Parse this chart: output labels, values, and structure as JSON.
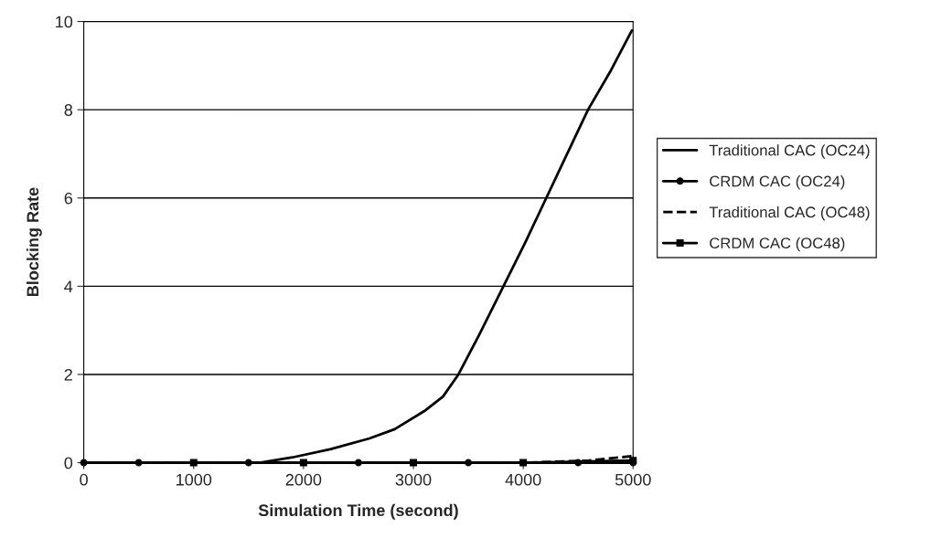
{
  "chart_data": {
    "type": "line",
    "xlabel": "Simulation Time (second)",
    "ylabel": "Blocking Rate",
    "xlim": [
      0,
      5000
    ],
    "xticks": [
      0,
      1000,
      2000,
      3000,
      4000,
      5000
    ],
    "ylim": [
      0,
      10
    ],
    "yticks": [
      0,
      2,
      4,
      6,
      8,
      10
    ],
    "grid": "y",
    "legend": "right",
    "series": [
      {
        "name": "Traditional CAC (OC24)",
        "color": "#000000",
        "line_style": "solid",
        "marker": "none",
        "x": [
          0,
          1600,
          1900,
          2250,
          2600,
          2830,
          3100,
          3270,
          3410,
          3600,
          3820,
          4020,
          4210,
          4400,
          4590,
          4800,
          4990
        ],
        "values": [
          0,
          0,
          0.12,
          0.31,
          0.55,
          0.76,
          1.17,
          1.5,
          2.0,
          2.9,
          4.0,
          5.0,
          6.0,
          7.0,
          8.0,
          8.9,
          9.8
        ]
      },
      {
        "name": "CRDM CAC (OC24)",
        "color": "#000000",
        "line_style": "solid",
        "marker": "circle",
        "x": [
          0,
          500,
          1500,
          2500,
          3500,
          4500,
          5000
        ],
        "values": [
          0,
          0,
          0,
          0,
          0,
          0,
          0
        ]
      },
      {
        "name": "Traditional CAC (OC48)",
        "color": "#000000",
        "line_style": "dashed",
        "marker": "none",
        "x": [
          0,
          4000,
          4600,
          4800,
          5000
        ],
        "values": [
          0,
          0,
          0.05,
          0.1,
          0.15
        ]
      },
      {
        "name": "CRDM CAC (OC48)",
        "color": "#000000",
        "line_style": "solid",
        "marker": "square",
        "x": [
          1000,
          2000,
          3000,
          4000,
          5000
        ],
        "values": [
          0,
          0,
          0,
          0,
          0.05
        ]
      }
    ]
  }
}
